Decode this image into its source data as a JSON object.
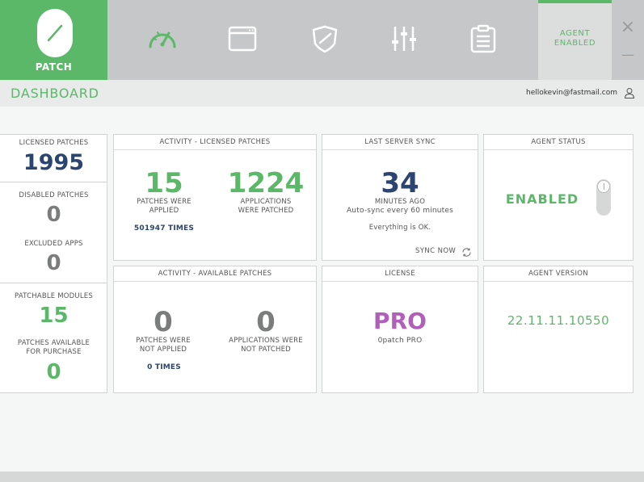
{
  "app": {
    "logo_text": "PATCH"
  },
  "nav": [
    {
      "icon": "speedometer-icon",
      "active": true
    },
    {
      "icon": "window-icon"
    },
    {
      "icon": "shield-icon"
    },
    {
      "icon": "sliders-icon"
    },
    {
      "icon": "clipboard-icon"
    }
  ],
  "agent_badge": {
    "line1": "AGENT",
    "line2": "ENABLED"
  },
  "window_controls": {
    "close": "×",
    "minimize": "—"
  },
  "header": {
    "title": "DASHBOARD",
    "user_email": "hellokevin@fastmail.com"
  },
  "left": {
    "licensed_label": "LICENSED PATCHES",
    "licensed_value": "1995",
    "disabled_label": "DISABLED PATCHES",
    "disabled_value": "0",
    "excluded_label": "EXCLUDED APPS",
    "excluded_value": "0",
    "modules_label": "PATCHABLE MODULES",
    "modules_value": "15",
    "available_label_1": "PATCHES AVAILABLE",
    "available_label_2": "FOR PURCHASE",
    "available_value": "0"
  },
  "activity_licensed": {
    "title": "ACTIVITY - LICENSED PATCHES",
    "patches_value": "15",
    "patches_label_1": "PATCHES WERE",
    "patches_label_2": "APPLIED",
    "apps_value": "1224",
    "apps_label_1": "APPLICATIONS",
    "apps_label_2": "WERE PATCHED",
    "times": "501947 TIMES"
  },
  "server_sync": {
    "title": "LAST SERVER SYNC",
    "value": "34",
    "label": "MINUTES AGO",
    "autosync": "Auto-sync every 60 minutes",
    "status": "Everything is OK.",
    "sync_now": "SYNC NOW"
  },
  "agent_status": {
    "title": "AGENT STATUS",
    "value": "ENABLED"
  },
  "activity_available": {
    "title": "ACTIVITY - AVAILABLE PATCHES",
    "patches_value": "0",
    "patches_label_1": "PATCHES WERE",
    "patches_label_2": "NOT APPLIED",
    "apps_value": "0",
    "apps_label_1": "APPLICATIONS WERE",
    "apps_label_2": "NOT PATCHED",
    "times": "0 TIMES"
  },
  "license": {
    "title": "LICENSE",
    "value": "PRO",
    "sub": "0patch PRO"
  },
  "agent_version": {
    "title": "AGENT VERSION",
    "value": "22.11.11.10550"
  },
  "colors": {
    "accent": "#5cb869",
    "navy": "#2c4470",
    "purple": "#b060b8",
    "grey": "#7b7d7c"
  }
}
